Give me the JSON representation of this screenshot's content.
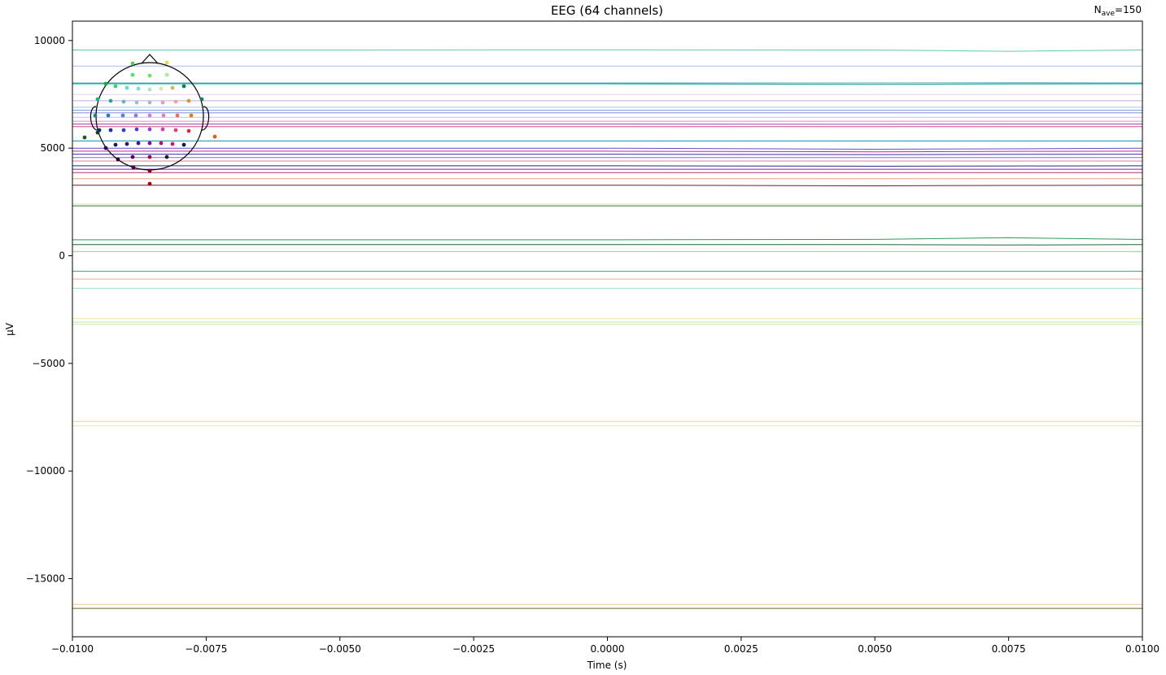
{
  "chart_data": {
    "type": "line",
    "title": "EEG (64 channels)",
    "annotation": {
      "base": "N",
      "sub": "ave",
      "suffix": "=150"
    },
    "xlabel": "Time (s)",
    "ylabel": "μV",
    "xlim": [
      -0.01,
      0.01
    ],
    "ylim": [
      -17700,
      10900
    ],
    "grid": false,
    "xticks": [
      -0.01,
      -0.0075,
      -0.005,
      -0.0025,
      0.0,
      0.0025,
      0.005,
      0.0075,
      0.01
    ],
    "xtick_labels": [
      "−0.0100",
      "−0.0075",
      "−0.0050",
      "−0.0025",
      "0.0000",
      "0.0025",
      "0.0050",
      "0.0075",
      "0.0100"
    ],
    "yticks": [
      10000,
      5000,
      0,
      -5000,
      -10000,
      -15000
    ],
    "ytick_labels": [
      "10000",
      "5000",
      "0",
      "−5000",
      "−10000",
      "−15000"
    ],
    "series": [
      {
        "color": "#5fc9b4",
        "values": [
          9560,
          9560,
          9560,
          9570,
          9560,
          9500,
          9560
        ]
      },
      {
        "color": "#9ec3e6",
        "values": [
          8810,
          8810,
          8810,
          8810,
          8810,
          8810,
          8810
        ]
      },
      {
        "color": "#5aa7c9",
        "values": [
          8030,
          8030,
          8030,
          8030,
          8030,
          8040,
          8030
        ]
      },
      {
        "color": "#8fe6cf",
        "values": [
          7960,
          7960,
          7960,
          7960,
          7960,
          7960,
          7960
        ]
      },
      {
        "color": "#2aa198",
        "values": [
          8000,
          8000,
          8000,
          8000,
          7960,
          7990,
          8000
        ]
      },
      {
        "color": "#e0cfee",
        "values": [
          7490,
          7490,
          7490,
          7490,
          7490,
          7490,
          7490
        ]
      },
      {
        "color": "#c7a9d9",
        "values": [
          7200,
          7200,
          7200,
          7200,
          7200,
          7200,
          7200
        ]
      },
      {
        "color": "#9fc7ee",
        "values": [
          6900,
          6900,
          6900,
          6900,
          6900,
          6900,
          6900
        ]
      },
      {
        "color": "#6f9ee0",
        "values": [
          6760,
          6760,
          6760,
          6760,
          6760,
          6760,
          6760
        ]
      },
      {
        "color": "#7d8fd6",
        "values": [
          6640,
          6640,
          6640,
          6640,
          6640,
          6640,
          6640
        ]
      },
      {
        "color": "#b9c6f0",
        "values": [
          6430,
          6430,
          6430,
          6430,
          6430,
          6430,
          6430
        ]
      },
      {
        "color": "#d98bd4",
        "values": [
          6250,
          6250,
          6250,
          6250,
          6250,
          6250,
          6250
        ]
      },
      {
        "color": "#a044b0",
        "values": [
          6120,
          6120,
          6120,
          6120,
          6110,
          6120,
          6120
        ]
      },
      {
        "color": "#d24a86",
        "values": [
          6000,
          6000,
          6000,
          6000,
          6000,
          6000,
          6000
        ]
      },
      {
        "color": "#0c8bb0",
        "values": [
          5340,
          5340,
          5340,
          5340,
          5340,
          5340,
          5340
        ]
      },
      {
        "color": "#5b4fd0",
        "values": [
          5000,
          5000,
          5000,
          5000,
          4950,
          4970,
          5000
        ]
      },
      {
        "color": "#c3229b",
        "values": [
          4860,
          4860,
          4860,
          4860,
          4830,
          4850,
          4860
        ]
      },
      {
        "color": "#3b2ea8",
        "values": [
          4720,
          4720,
          4720,
          4720,
          4700,
          4710,
          4720
        ]
      },
      {
        "color": "#7a6fe0",
        "values": [
          4560,
          4560,
          4560,
          4560,
          4560,
          4560,
          4560
        ]
      },
      {
        "color": "#e07aa0",
        "values": [
          4400,
          4400,
          4400,
          4400,
          4400,
          4400,
          4400
        ]
      },
      {
        "color": "#1f2a8a",
        "values": [
          4180,
          4180,
          4180,
          4180,
          4160,
          4170,
          4180
        ]
      },
      {
        "color": "#7f1fa0",
        "values": [
          4020,
          4020,
          4020,
          4020,
          4020,
          4020,
          4020
        ]
      },
      {
        "color": "#b03070",
        "values": [
          3860,
          3860,
          3860,
          3860,
          3860,
          3860,
          3860
        ]
      },
      {
        "color": "#e0a080",
        "values": [
          3580,
          3580,
          3580,
          3580,
          3580,
          3580,
          3580
        ]
      },
      {
        "color": "#7a1040",
        "values": [
          3280,
          3280,
          3280,
          3280,
          3250,
          3270,
          3280
        ]
      },
      {
        "color": "#d7e89a",
        "values": [
          2400,
          2400,
          2400,
          2400,
          2400,
          2400,
          2400
        ]
      },
      {
        "color": "#2f7a3a",
        "values": [
          2320,
          2320,
          2320,
          2320,
          2320,
          2320,
          2320
        ]
      },
      {
        "color": "#2a9a5a",
        "values": [
          740,
          740,
          740,
          740,
          760,
          840,
          760
        ]
      },
      {
        "color": "#1f6a2a",
        "values": [
          520,
          520,
          520,
          520,
          520,
          500,
          520
        ]
      },
      {
        "color": "#8fd08a",
        "values": [
          200,
          200,
          200,
          200,
          200,
          200,
          200
        ]
      },
      {
        "color": "#3aa86a",
        "values": [
          -720,
          -720,
          -720,
          -720,
          -720,
          -720,
          -720
        ]
      },
      {
        "color": "#f0a890",
        "values": [
          -1080,
          -1080,
          -1080,
          -1080,
          -1080,
          -1080,
          -1080
        ]
      },
      {
        "color": "#a0e6c8",
        "values": [
          -1510,
          -1510,
          -1510,
          -1510,
          -1510,
          -1510,
          -1510
        ]
      },
      {
        "color": "#f0e69a",
        "values": [
          -2920,
          -2920,
          -2920,
          -2920,
          -2920,
          -2920,
          -2920
        ]
      },
      {
        "color": "#b8e6a0",
        "values": [
          -3080,
          -3080,
          -3080,
          -3080,
          -3080,
          -3080,
          -3080
        ]
      },
      {
        "color": "#c8ee9a",
        "values": [
          -3180,
          -3180,
          -3180,
          -3180,
          -3180,
          -3180,
          -3180
        ]
      },
      {
        "color": "#f0d878",
        "values": [
          -7700,
          -7700,
          -7700,
          -7700,
          -7700,
          -7700,
          -7700
        ]
      },
      {
        "color": "#d8f0a0",
        "values": [
          -7900,
          -7900,
          -7900,
          -7900,
          -7900,
          -7900,
          -7900
        ]
      },
      {
        "color": "#f0c890",
        "values": [
          -16200,
          -16200,
          -16200,
          -16200,
          -16200,
          -16200,
          -16200
        ]
      },
      {
        "color": "#5a6a2a",
        "values": [
          -16380,
          -16380,
          -16380,
          -16380,
          -16380,
          -16380,
          -16380
        ]
      }
    ],
    "x": [
      -0.01,
      -0.0075,
      -0.005,
      0.0,
      0.005,
      0.0075,
      0.01
    ],
    "sensor_inset": {
      "electrodes": [
        {
          "color": "#50d050"
        },
        {
          "color": "#e0e040"
        },
        {
          "color": "#50e080"
        },
        {
          "color": "#70e070"
        },
        {
          "color": "#a0f0a0"
        },
        {
          "color": "#10b040"
        },
        {
          "color": "#40d070"
        },
        {
          "color": "#60e0c0"
        },
        {
          "color": "#80e0c0"
        },
        {
          "color": "#b0e0d0"
        },
        {
          "color": "#e0e0b0"
        },
        {
          "color": "#e0b060"
        },
        {
          "color": "#108050"
        },
        {
          "color": "#20b080"
        },
        {
          "color": "#30a0a0"
        },
        {
          "color": "#60b0d0"
        },
        {
          "color": "#90c0e0"
        },
        {
          "color": "#b0b0e0"
        },
        {
          "color": "#e0a0c0"
        },
        {
          "color": "#f0a0a0"
        },
        {
          "color": "#e09040"
        },
        {
          "color": "#108060"
        },
        {
          "color": "#208080"
        },
        {
          "color": "#2080c0"
        },
        {
          "color": "#5080e0"
        },
        {
          "color": "#8080e0"
        },
        {
          "color": "#c080e0"
        },
        {
          "color": "#e080c0"
        },
        {
          "color": "#e07070"
        },
        {
          "color": "#d08020"
        },
        {
          "color": "#103060"
        },
        {
          "color": "#203090"
        },
        {
          "color": "#3040c0"
        },
        {
          "color": "#5040e0"
        },
        {
          "color": "#9040e0"
        },
        {
          "color": "#d040b0"
        },
        {
          "color": "#e04080"
        },
        {
          "color": "#d03040"
        },
        {
          "color": "#104020"
        },
        {
          "color": "#102050"
        },
        {
          "color": "#201a80"
        },
        {
          "color": "#4010a0"
        },
        {
          "color": "#8010a0"
        },
        {
          "color": "#b01080"
        },
        {
          "color": "#e01060"
        },
        {
          "color": "#002040"
        },
        {
          "color": "#300060"
        },
        {
          "color": "#600060"
        },
        {
          "color": "#a00040"
        },
        {
          "color": "#202020"
        },
        {
          "color": "#200040"
        },
        {
          "color": "#500030"
        },
        {
          "color": "#800020"
        },
        {
          "color": "#1a5a1a"
        },
        {
          "color": "#e06010"
        },
        {
          "color": "#a00010"
        }
      ]
    }
  }
}
